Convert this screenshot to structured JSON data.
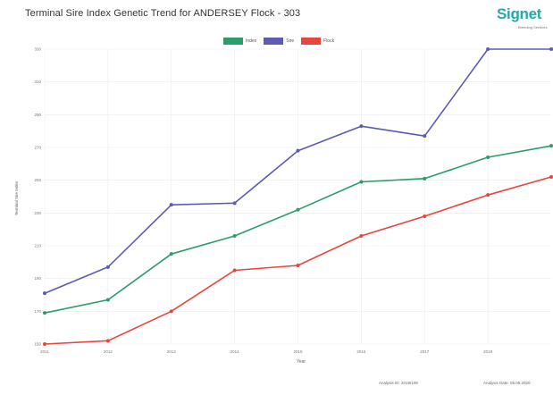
{
  "page": {
    "title": "Terminal Sire Index Genetic Trend for ANDERSEY Flock - 303",
    "brand": "Signet",
    "brand_sub": "Breeding Services",
    "footer_left": "Analysis ID: 2019/109",
    "footer_right": "Analysis Date: 05.05.2020"
  },
  "colors": {
    "index": "#2a9d6a",
    "sire": "#5b5bb5",
    "flock": "#e8453c",
    "grid": "#ebebeb"
  },
  "chart_data": {
    "type": "line",
    "title": "Terminal Sire Index Genetic Trend for ANDERSEY Flock - 303",
    "xlabel": "Year",
    "ylabel": "Terminal Sire Index",
    "x": [
      2011,
      2012,
      2013,
      2014,
      2015,
      2016,
      2017,
      2018,
      2019
    ],
    "xlim": [
      2011,
      2019
    ],
    "ylim": [
      150,
      330
    ],
    "y_ticks": [
      150,
      170,
      190,
      210,
      230,
      250,
      270,
      290,
      310,
      330
    ],
    "x_ticks": [
      2011,
      2012,
      2013,
      2014,
      2015,
      2016,
      2017,
      2018
    ],
    "grid": true,
    "legend_position": "top",
    "series": [
      {
        "name": "Index",
        "color": "#2a9d6a",
        "values": [
          169,
          177,
          205,
          216,
          232,
          249,
          251,
          264,
          271
        ]
      },
      {
        "name": "Sire",
        "color": "#5b5bb5",
        "values": [
          181,
          197,
          235,
          236,
          268,
          283,
          277,
          330,
          330
        ]
      },
      {
        "name": "Flock",
        "color": "#e8453c",
        "values": [
          150,
          152,
          170,
          195,
          198,
          216,
          228,
          241,
          252
        ]
      }
    ]
  }
}
